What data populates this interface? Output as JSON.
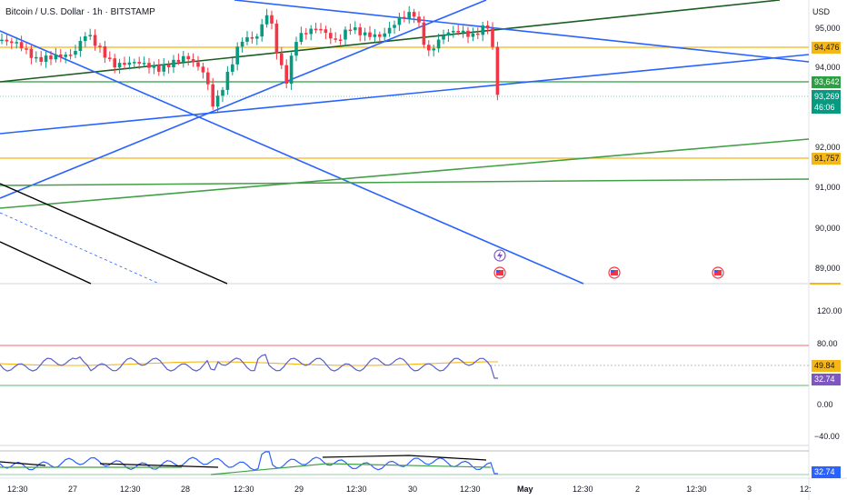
{
  "header": {
    "symbol_title": "Bitcoin / U.S. Dollar · 1h · BITSTAMP",
    "currency": "USD"
  },
  "price_axis": {
    "ticks": [
      "95,000",
      "94,000",
      "92,000",
      "91,000",
      "90,000",
      "89,000"
    ]
  },
  "price_badges": {
    "yellow_upper": "94,476",
    "green_level": "93,642",
    "last_price": "93,269",
    "countdown": "46:06",
    "yellow_lower": "91,757"
  },
  "rsi_axis": {
    "ticks": [
      "120.00",
      "80.00",
      "0.00",
      "−40.00"
    ]
  },
  "rsi_badges": {
    "ma": "49.84",
    "rsi": "32.74"
  },
  "lower_badge": "32.74",
  "time_axis": {
    "labels": [
      "12:30",
      "27",
      "12:30",
      "28",
      "12:30",
      "29",
      "12:30",
      "30",
      "12:30",
      "May",
      "12:30",
      "2",
      "12:30",
      "3",
      "12:"
    ]
  },
  "colors": {
    "up": "#089981",
    "down": "#f23645",
    "trend_blue": "#2962ff",
    "level_yellow": "#f5b618",
    "level_green": "#2e9e44",
    "rsi_line": "#7e57c2",
    "rsi_ma": "#f5b618"
  }
}
